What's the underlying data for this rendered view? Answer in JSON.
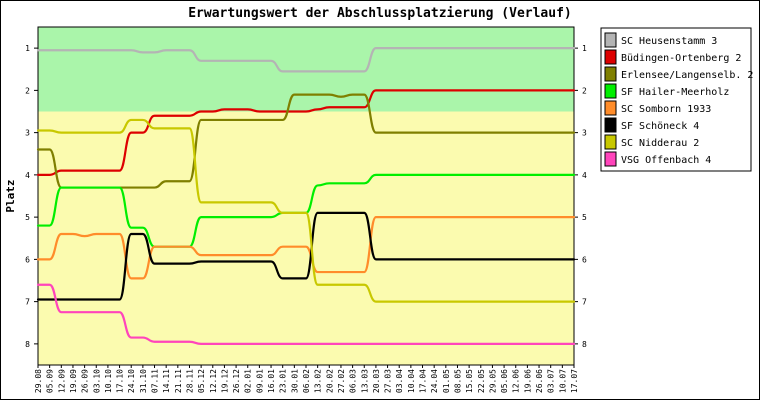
{
  "chart_data": {
    "type": "line",
    "title": "Erwartungswert der Abschlussplatzierung (Verlauf)",
    "xlabel": "",
    "ylabel": "Platz",
    "ylim": [
      0.5,
      8.5
    ],
    "yticks": [
      1,
      2,
      3,
      4,
      5,
      6,
      7,
      8
    ],
    "zones": [
      {
        "from": 0.5,
        "to": 2.5,
        "color": "#aaf5aa"
      },
      {
        "from": 2.5,
        "to": 8.5,
        "color": "#fbfbaf"
      }
    ],
    "categories": [
      "29.08",
      "05.09",
      "12.09",
      "19.09",
      "26.09",
      "03.10",
      "10.10",
      "17.10",
      "24.10",
      "31.10",
      "07.11",
      "14.11",
      "21.11",
      "28.11",
      "05.12",
      "12.12",
      "19.12",
      "26.12",
      "02.01",
      "09.01",
      "16.01",
      "23.01",
      "30.01",
      "06.02",
      "13.02",
      "20.02",
      "27.02",
      "06.03",
      "13.03",
      "20.03",
      "27.03",
      "03.04",
      "10.04",
      "17.04",
      "24.04",
      "01.05",
      "08.05",
      "15.05",
      "22.05",
      "29.05",
      "05.06",
      "12.06",
      "19.06",
      "26.06",
      "03.07",
      "10.07",
      "17.07"
    ],
    "series": [
      {
        "name": "SC Heusenstamm 3",
        "color": "#b4b4b4",
        "values": [
          1.05,
          1.05,
          1.05,
          1.05,
          1.05,
          1.05,
          1.05,
          1.05,
          1.05,
          1.1,
          1.1,
          1.05,
          1.05,
          1.05,
          1.3,
          1.3,
          1.3,
          1.3,
          1.3,
          1.3,
          1.3,
          1.55,
          1.55,
          1.55,
          1.55,
          1.55,
          1.55,
          1.55,
          1.55,
          1.0,
          1.0,
          1.0,
          1.0,
          1.0,
          1.0,
          1.0,
          1.0,
          1.0,
          1.0,
          1.0,
          1.0,
          1.0,
          1.0,
          1.0,
          1.0,
          1.0,
          1.0
        ]
      },
      {
        "name": "Büdingen-Ortenberg 2",
        "color": "#dd0000",
        "values": [
          4.0,
          4.0,
          3.9,
          3.9,
          3.9,
          3.9,
          3.9,
          3.9,
          3.0,
          3.0,
          2.6,
          2.6,
          2.6,
          2.6,
          2.5,
          2.5,
          2.45,
          2.45,
          2.45,
          2.5,
          2.5,
          2.5,
          2.5,
          2.5,
          2.45,
          2.4,
          2.4,
          2.4,
          2.4,
          2.0,
          2.0,
          2.0,
          2.0,
          2.0,
          2.0,
          2.0,
          2.0,
          2.0,
          2.0,
          2.0,
          2.0,
          2.0,
          2.0,
          2.0,
          2.0,
          2.0,
          2.0
        ]
      },
      {
        "name": "Erlensee/Langenselb. 2",
        "color": "#7f7f00",
        "values": [
          3.4,
          3.4,
          4.3,
          4.3,
          4.3,
          4.3,
          4.3,
          4.3,
          4.3,
          4.3,
          4.3,
          4.15,
          4.15,
          4.15,
          2.7,
          2.7,
          2.7,
          2.7,
          2.7,
          2.7,
          2.7,
          2.7,
          2.1,
          2.1,
          2.1,
          2.1,
          2.15,
          2.1,
          2.1,
          3.0,
          3.0,
          3.0,
          3.0,
          3.0,
          3.0,
          3.0,
          3.0,
          3.0,
          3.0,
          3.0,
          3.0,
          3.0,
          3.0,
          3.0,
          3.0,
          3.0,
          3.0
        ]
      },
      {
        "name": "SF Hailer-Meerholz",
        "color": "#00ee00",
        "values": [
          5.2,
          5.2,
          4.3,
          4.3,
          4.3,
          4.3,
          4.3,
          4.3,
          5.25,
          5.25,
          5.7,
          5.7,
          5.7,
          5.7,
          5.0,
          5.0,
          5.0,
          5.0,
          5.0,
          5.0,
          5.0,
          4.9,
          4.9,
          4.9,
          4.25,
          4.2,
          4.2,
          4.2,
          4.2,
          4.0,
          4.0,
          4.0,
          4.0,
          4.0,
          4.0,
          4.0,
          4.0,
          4.0,
          4.0,
          4.0,
          4.0,
          4.0,
          4.0,
          4.0,
          4.0,
          4.0,
          4.0
        ]
      },
      {
        "name": "SC Somborn 1933",
        "color": "#ff8c2a",
        "values": [
          6.0,
          6.0,
          5.4,
          5.4,
          5.45,
          5.4,
          5.4,
          5.4,
          6.45,
          6.45,
          5.7,
          5.7,
          5.7,
          5.7,
          5.9,
          5.9,
          5.9,
          5.9,
          5.9,
          5.9,
          5.9,
          5.7,
          5.7,
          5.7,
          6.3,
          6.3,
          6.3,
          6.3,
          6.3,
          5.0,
          5.0,
          5.0,
          5.0,
          5.0,
          5.0,
          5.0,
          5.0,
          5.0,
          5.0,
          5.0,
          5.0,
          5.0,
          5.0,
          5.0,
          5.0,
          5.0,
          5.0
        ]
      },
      {
        "name": "SF Schöneck 4",
        "color": "#000000",
        "values": [
          6.95,
          6.95,
          6.95,
          6.95,
          6.95,
          6.95,
          6.95,
          6.95,
          5.4,
          5.4,
          6.1,
          6.1,
          6.1,
          6.1,
          6.05,
          6.05,
          6.05,
          6.05,
          6.05,
          6.05,
          6.05,
          6.45,
          6.45,
          6.45,
          4.9,
          4.9,
          4.9,
          4.9,
          4.9,
          6.0,
          6.0,
          6.0,
          6.0,
          6.0,
          6.0,
          6.0,
          6.0,
          6.0,
          6.0,
          6.0,
          6.0,
          6.0,
          6.0,
          6.0,
          6.0,
          6.0,
          6.0
        ]
      },
      {
        "name": "SC Nidderau 2",
        "color": "#c8c800",
        "values": [
          2.95,
          2.95,
          3.0,
          3.0,
          3.0,
          3.0,
          3.0,
          3.0,
          2.7,
          2.7,
          2.9,
          2.9,
          2.9,
          2.9,
          4.65,
          4.65,
          4.65,
          4.65,
          4.65,
          4.65,
          4.65,
          4.9,
          4.9,
          4.9,
          6.6,
          6.6,
          6.6,
          6.6,
          6.6,
          7.0,
          7.0,
          7.0,
          7.0,
          7.0,
          7.0,
          7.0,
          7.0,
          7.0,
          7.0,
          7.0,
          7.0,
          7.0,
          7.0,
          7.0,
          7.0,
          7.0,
          7.0
        ]
      },
      {
        "name": "VSG Offenbach 4",
        "color": "#ff44bb",
        "values": [
          6.6,
          6.6,
          7.25,
          7.25,
          7.25,
          7.25,
          7.25,
          7.25,
          7.85,
          7.85,
          7.95,
          7.95,
          7.95,
          7.95,
          8.0,
          8.0,
          8.0,
          8.0,
          8.0,
          8.0,
          8.0,
          8.0,
          8.0,
          8.0,
          8.0,
          8.0,
          8.0,
          8.0,
          8.0,
          8.0,
          8.0,
          8.0,
          8.0,
          8.0,
          8.0,
          8.0,
          8.0,
          8.0,
          8.0,
          8.0,
          8.0,
          8.0,
          8.0,
          8.0,
          8.0,
          8.0,
          8.0
        ]
      }
    ]
  }
}
